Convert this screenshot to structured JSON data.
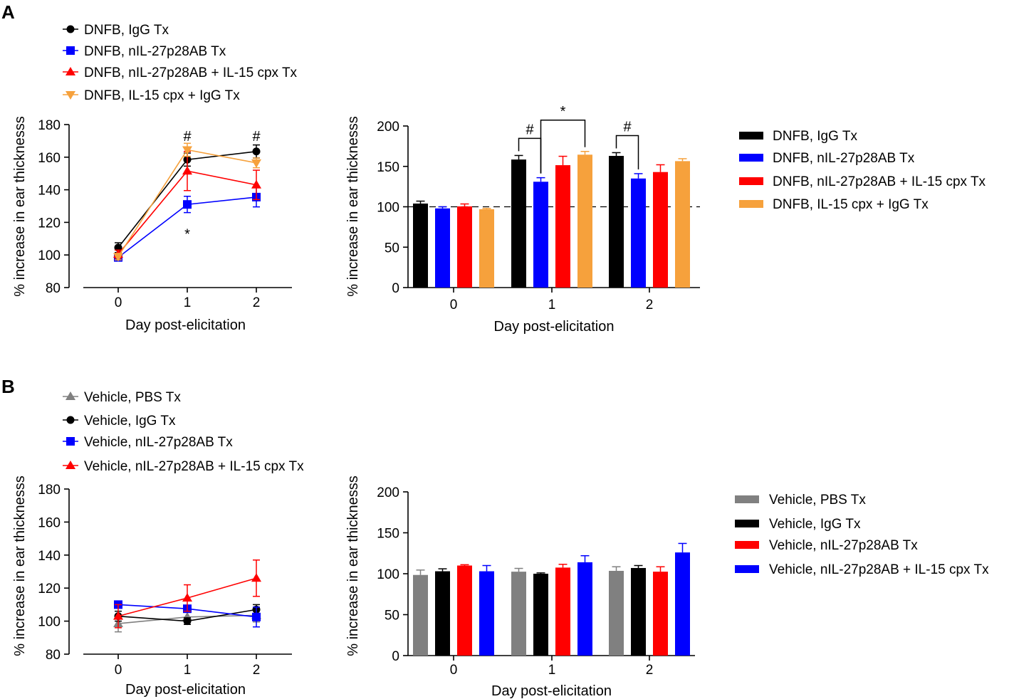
{
  "panels": [
    "A",
    "B"
  ],
  "chart_data": [
    {
      "id": "A_line",
      "type": "line",
      "panel": "A",
      "xlabel": "Day post-elicitation",
      "ylabel": "% increase in ear thicknesss",
      "categories": [
        "0",
        "1",
        "2"
      ],
      "ylim": [
        80,
        180
      ],
      "yticks": [
        "80",
        "100",
        "120",
        "140",
        "160",
        "180"
      ],
      "series": [
        {
          "name": "DNFB, IgG Tx",
          "color": "#000000",
          "marker": "circle",
          "values": [
            104.5,
            158.5,
            163.5
          ],
          "err": [
            3,
            4,
            4
          ]
        },
        {
          "name": "DNFB, nIL-27p28AB Tx",
          "color": "#0000ff",
          "marker": "square",
          "values": [
            98.5,
            131,
            135.5
          ],
          "err": [
            2,
            5,
            6
          ]
        },
        {
          "name": "DNFB, nIL-27p28AB + IL-15 cpx Tx",
          "color": "#ff0000",
          "marker": "triangle",
          "values": [
            100.5,
            151.5,
            143
          ],
          "err": [
            2.5,
            12,
            9
          ]
        },
        {
          "name": "DNFB, IL-15 cpx + IgG Tx",
          "color": "#f6a13c",
          "marker": "triangle-down",
          "values": [
            99,
            164.5,
            156.5
          ],
          "err": [
            2,
            4,
            3
          ]
        }
      ],
      "annotations": [
        {
          "text": "#",
          "at": "1",
          "y": 173
        },
        {
          "text": "#",
          "at": "2",
          "y": 173
        },
        {
          "text": "*",
          "at": "1",
          "y": 113
        }
      ]
    },
    {
      "id": "A_bar",
      "type": "bar",
      "panel": "A",
      "xlabel": "Day post-elicitation",
      "ylabel": "% increase in ear thicknesss",
      "categories": [
        "0",
        "1",
        "2"
      ],
      "ylim": [
        0,
        200
      ],
      "yticks": [
        "0",
        "50",
        "100",
        "150",
        "200"
      ],
      "reference_line": 100,
      "series": [
        {
          "name": "DNFB, IgG Tx",
          "color": "#000000",
          "values": [
            104,
            158.5,
            163
          ],
          "err": [
            3,
            5,
            4
          ]
        },
        {
          "name": "DNFB, nIL-27p28AB Tx",
          "color": "#0000ff",
          "values": [
            98,
            131,
            135
          ],
          "err": [
            2,
            5,
            6
          ]
        },
        {
          "name": "DNFB, nIL-27p28AB + IL-15 cpx Tx",
          "color": "#ff0000",
          "values": [
            100.5,
            151.5,
            143
          ],
          "err": [
            3,
            11,
            9
          ]
        },
        {
          "name": "DNFB, IL-15 cpx + IgG Tx",
          "color": "#f6a13c",
          "values": [
            97,
            164.5,
            156.5
          ],
          "err": [
            1,
            4,
            3
          ]
        }
      ],
      "brackets": [
        {
          "text": "#",
          "category": "1",
          "from": 0,
          "to": 1
        },
        {
          "text": "*",
          "category": "1",
          "from": 1,
          "to": 3
        },
        {
          "text": "#",
          "category": "2",
          "from": 0,
          "to": 1
        }
      ]
    },
    {
      "id": "B_line",
      "type": "line",
      "panel": "B",
      "xlabel": "Day post-elicitation",
      "ylabel": "% increase in ear thicknesss",
      "categories": [
        "0",
        "1",
        "2"
      ],
      "ylim": [
        80,
        180
      ],
      "yticks": [
        "80",
        "100",
        "120",
        "140",
        "160",
        "180"
      ],
      "series": [
        {
          "name": "Vehicle, PBS Tx",
          "color": "#808080",
          "marker": "triangle",
          "values": [
            98.5,
            102.5,
            103.5
          ],
          "err": [
            5,
            3,
            4
          ]
        },
        {
          "name": "Vehicle, IgG Tx",
          "color": "#000000",
          "marker": "circle",
          "values": [
            103,
            100,
            107
          ],
          "err": [
            3,
            2,
            3
          ]
        },
        {
          "name": "Vehicle, nIL-27p28AB Tx",
          "color": "#0000ff",
          "marker": "square",
          "values": [
            110,
            107.5,
            102.5
          ],
          "err": [
            1,
            2,
            6
          ]
        },
        {
          "name": "Vehicle, nIL-27p28AB + IL-15 cpx Tx",
          "color": "#ff0000",
          "marker": "triangle",
          "values": [
            103,
            114,
            126
          ],
          "err": [
            7,
            8,
            11
          ]
        }
      ]
    },
    {
      "id": "B_bar",
      "type": "bar",
      "panel": "B",
      "xlabel": "Day post-elicitation",
      "ylabel": "% increase in ear thicknesss",
      "categories": [
        "0",
        "1",
        "2"
      ],
      "ylim": [
        0,
        200
      ],
      "yticks": [
        "0",
        "50",
        "100",
        "150",
        "200"
      ],
      "series": [
        {
          "name": "Vehicle, PBS Tx",
          "color": "#808080",
          "values": [
            98.5,
            102.5,
            103.5
          ],
          "err": [
            6,
            4,
            5
          ]
        },
        {
          "name": "Vehicle, IgG Tx",
          "color": "#000000",
          "values": [
            103,
            100,
            107
          ],
          "err": [
            3,
            1,
            3
          ]
        },
        {
          "name": "Vehicle, nIL-27p28AB Tx",
          "color": "#ff0000",
          "values": [
            110,
            107.5,
            102.5
          ],
          "err": [
            1,
            4,
            6
          ]
        },
        {
          "name": "Vehicle, nIL-27p28AB + IL-15 cpx Tx",
          "color": "#0000ff",
          "values": [
            103,
            114,
            126
          ],
          "err": [
            7,
            8,
            11
          ]
        }
      ]
    }
  ]
}
